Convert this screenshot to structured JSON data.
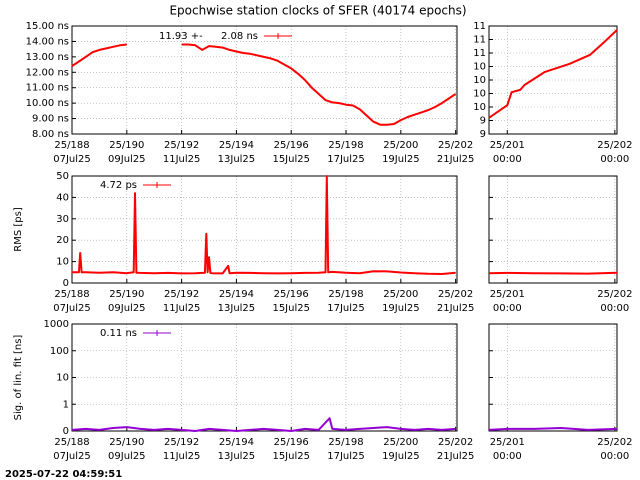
{
  "title": "Epochwise station clocks of SFER (40174 epochs)",
  "timestamp": "2025-07-22 04:59:51",
  "chart_data": [
    {
      "type": "line",
      "grid": true,
      "xlim": [
        188,
        202.05
      ],
      "xticks": [
        {
          "value": 188,
          "label": "25/188",
          "label2": "07Jul25"
        },
        {
          "value": 190,
          "label": "25/190",
          "label2": "09Jul25"
        },
        {
          "value": 192,
          "label": "25/192",
          "label2": "11Jul25"
        },
        {
          "value": 194,
          "label": "25/194",
          "label2": "13Jul25"
        },
        {
          "value": 196,
          "label": "25/196",
          "label2": "15Jul25"
        },
        {
          "value": 198,
          "label": "25/198",
          "label2": "17Jul25"
        },
        {
          "value": 200,
          "label": "25/200",
          "label2": "19Jul25"
        },
        {
          "value": 202,
          "label": "25/202",
          "label2": "21Jul25"
        }
      ],
      "ylim": [
        8,
        15
      ],
      "yticks": [
        {
          "value": 8,
          "label": "8.00 ns"
        },
        {
          "value": 9,
          "label": "9.00 ns"
        },
        {
          "value": 10,
          "label": "10.00 ns"
        },
        {
          "value": 11,
          "label": "11.00 ns"
        },
        {
          "value": 12,
          "label": "12.00 ns"
        },
        {
          "value": 13,
          "label": "13.00 ns"
        },
        {
          "value": 14,
          "label": "14.00 ns"
        },
        {
          "value": 15,
          "label": "15.00 ns"
        }
      ],
      "x": [
        188,
        188.25,
        188.5,
        188.75,
        189,
        189.25,
        189.5,
        189.75,
        190,
        190.25,
        190.5,
        190.75,
        191,
        191.25,
        191.5,
        191.75,
        192,
        192.25,
        192.5,
        192.75,
        193,
        193.25,
        193.5,
        193.75,
        194,
        194.25,
        194.5,
        194.75,
        195,
        195.25,
        195.5,
        195.75,
        196,
        196.25,
        196.5,
        196.75,
        197,
        197.25,
        197.5,
        197.75,
        198,
        198.25,
        198.5,
        198.75,
        199,
        199.25,
        199.5,
        199.75,
        200,
        200.25,
        200.5,
        200.75,
        201,
        201.25,
        201.5,
        201.75,
        202
      ],
      "series": [
        {
          "name": "11.93 +-",
          "error": "2.08 ns",
          "color": "#ff0000",
          "values": [
            12.4,
            12.7,
            13.0,
            13.3,
            13.45,
            13.55,
            13.65,
            13.75,
            13.8,
            null,
            null,
            null,
            null,
            null,
            null,
            null,
            13.8,
            13.8,
            13.75,
            13.45,
            13.7,
            13.65,
            13.6,
            13.45,
            13.35,
            13.25,
            13.2,
            13.1,
            13.0,
            12.9,
            12.75,
            12.5,
            12.25,
            11.9,
            11.5,
            11.0,
            10.6,
            10.2,
            10.05,
            10.0,
            9.9,
            9.85,
            9.6,
            9.2,
            8.8,
            8.6,
            8.6,
            8.65,
            8.9,
            9.1,
            9.25,
            9.4,
            9.55,
            9.75,
            10.0,
            10.3,
            10.6
          ]
        }
      ]
    },
    {
      "type": "line",
      "grid": true,
      "xlim": [
        200.83,
        202.02
      ],
      "xticks": [
        {
          "value": 201,
          "label": "25/201",
          "label2": "00:00"
        },
        {
          "value": 202,
          "label": "25/202",
          "label2": "00:00"
        }
      ],
      "ylim": [
        9.0,
        11.4
      ],
      "yticks": [
        {
          "value": 9.0,
          "label": "9"
        },
        {
          "value": 9.3,
          "label": "9"
        },
        {
          "value": 9.6,
          "label": "10"
        },
        {
          "value": 9.9,
          "label": "10"
        },
        {
          "value": 10.2,
          "label": "10"
        },
        {
          "value": 10.5,
          "label": "10"
        },
        {
          "value": 10.8,
          "label": "11"
        },
        {
          "value": 11.1,
          "label": "11"
        },
        {
          "value": 11.4,
          "label": "11"
        }
      ],
      "x": [
        200.83,
        201.0,
        201.04,
        201.12,
        201.16,
        201.35,
        201.58,
        201.77,
        201.9,
        202.02
      ],
      "series": [
        {
          "color": "#ff0000",
          "values": [
            9.36,
            9.64,
            9.93,
            9.98,
            10.09,
            10.38,
            10.56,
            10.76,
            11.04,
            11.31
          ]
        }
      ]
    },
    {
      "type": "line",
      "grid": true,
      "ylabel": "RMS [ps]",
      "xlim": [
        188,
        202.05
      ],
      "xticks": [
        {
          "value": 188,
          "label": "25/188",
          "label2": "07Jul25"
        },
        {
          "value": 190,
          "label": "25/190",
          "label2": "09Jul25"
        },
        {
          "value": 192,
          "label": "25/192",
          "label2": "11Jul25"
        },
        {
          "value": 194,
          "label": "25/194",
          "label2": "13Jul25"
        },
        {
          "value": 196,
          "label": "25/196",
          "label2": "15Jul25"
        },
        {
          "value": 198,
          "label": "25/198",
          "label2": "17Jul25"
        },
        {
          "value": 200,
          "label": "25/200",
          "label2": "19Jul25"
        },
        {
          "value": 202,
          "label": "25/202",
          "label2": "21Jul25"
        }
      ],
      "ylim": [
        0,
        50
      ],
      "yticks": [
        0,
        10,
        20,
        30,
        40,
        50
      ],
      "x": [
        188,
        188.25,
        188.3,
        188.35,
        188.5,
        189,
        189.5,
        190,
        190.25,
        190.3,
        190.35,
        190.5,
        191,
        191.5,
        192,
        192.5,
        192.85,
        192.9,
        192.95,
        193,
        193.05,
        193.1,
        193.5,
        193.7,
        193.75,
        194,
        194.5,
        195,
        195.5,
        196,
        196.5,
        197,
        197.25,
        197.3,
        197.35,
        197.5,
        198,
        198.5,
        199,
        199.5,
        200,
        200.5,
        201,
        201.5,
        202
      ],
      "series": [
        {
          "name": "4.72 ps",
          "color": "#ff0000",
          "values": [
            5,
            5,
            14,
            5,
            5,
            4.8,
            5,
            4.6,
            5,
            42,
            4.8,
            4.7,
            4.6,
            4.7,
            4.5,
            4.6,
            4.8,
            23,
            5,
            12,
            4.7,
            4.6,
            4.5,
            8,
            4.6,
            4.8,
            4.7,
            4.6,
            4.5,
            4.6,
            4.7,
            4.8,
            5,
            50,
            5,
            5.2,
            4.8,
            4.6,
            5.5,
            5.4,
            4.9,
            4.6,
            4.3,
            4.2,
            4.8
          ]
        }
      ]
    },
    {
      "type": "line",
      "grid": true,
      "show_ytick_labels": false,
      "xlim": [
        200.83,
        202.02
      ],
      "xticks": [
        {
          "value": 201,
          "label": "25/201",
          "label2": "00:00"
        },
        {
          "value": 202,
          "label": "25/202",
          "label2": "00:00"
        }
      ],
      "ylim": [
        0,
        50
      ],
      "yticks": [
        0,
        10,
        20,
        30,
        40,
        50
      ],
      "x": [
        200.83,
        201,
        201.25,
        201.5,
        201.75,
        202.02
      ],
      "series": [
        {
          "color": "#ff0000",
          "values": [
            4.6,
            4.7,
            4.6,
            4.5,
            4.4,
            4.8
          ]
        }
      ]
    },
    {
      "type": "line",
      "grid": true,
      "log": true,
      "ylabel": "Sig. of lin. fit [ns]",
      "xlim": [
        188,
        202.05
      ],
      "xticks": [
        {
          "value": 188,
          "label": "25/188",
          "label2": "07Jul25"
        },
        {
          "value": 190,
          "label": "25/190",
          "label2": "09Jul25"
        },
        {
          "value": 192,
          "label": "25/192",
          "label2": "11Jul25"
        },
        {
          "value": 194,
          "label": "25/194",
          "label2": "13Jul25"
        },
        {
          "value": 196,
          "label": "25/196",
          "label2": "15Jul25"
        },
        {
          "value": 198,
          "label": "25/198",
          "label2": "17Jul25"
        },
        {
          "value": 200,
          "label": "25/200",
          "label2": "19Jul25"
        },
        {
          "value": 202,
          "label": "25/202",
          "label2": "21Jul25"
        }
      ],
      "ylim": [
        0.1,
        1000
      ],
      "yticks": [
        {
          "value": 0.1,
          "label": "0"
        },
        1,
        10,
        100,
        1000
      ],
      "x": [
        188,
        188.5,
        189,
        189.5,
        190,
        190.5,
        191,
        191.5,
        192,
        192.5,
        193,
        193.5,
        194,
        194.5,
        195,
        195.5,
        196,
        196.5,
        197,
        197.4,
        197.5,
        198,
        198.5,
        199,
        199.5,
        200,
        200.5,
        201,
        201.5,
        202
      ],
      "series": [
        {
          "name": "0.11 ns",
          "color": "#9400d3",
          "values": [
            0.11,
            0.12,
            0.11,
            0.13,
            0.14,
            0.12,
            0.11,
            0.12,
            0.11,
            0.1,
            0.12,
            0.11,
            0.1,
            0.11,
            0.12,
            0.11,
            0.1,
            0.12,
            0.11,
            0.3,
            0.12,
            0.11,
            0.12,
            0.13,
            0.14,
            0.12,
            0.11,
            0.12,
            0.11,
            0.12
          ]
        }
      ]
    },
    {
      "type": "line",
      "grid": true,
      "log": true,
      "show_ytick_labels": false,
      "xlim": [
        200.83,
        202.02
      ],
      "xticks": [
        {
          "value": 201,
          "label": "25/201",
          "label2": "00:00"
        },
        {
          "value": 202,
          "label": "25/202",
          "label2": "00:00"
        }
      ],
      "ylim": [
        0.1,
        1000
      ],
      "yticks": [
        {
          "value": 0.1,
          "label": "0"
        },
        1,
        10,
        100,
        1000
      ],
      "x": [
        200.83,
        201,
        201.25,
        201.5,
        201.75,
        202.02
      ],
      "series": [
        {
          "color": "#9400d3",
          "values": [
            0.11,
            0.12,
            0.12,
            0.13,
            0.11,
            0.12
          ]
        }
      ]
    }
  ]
}
